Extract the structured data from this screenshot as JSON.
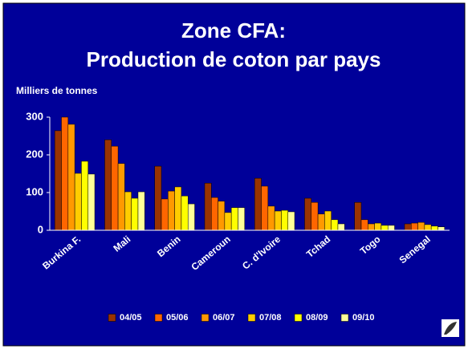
{
  "chart_data": {
    "type": "bar",
    "title": "Zone CFA:",
    "subtitle": "Production de coton par pays",
    "y_label": "Milliers de tonnes",
    "categories": [
      "Burkina F.",
      "Mali",
      "Benin",
      "Cameroun",
      "C. d'Ivoire",
      "Tchad",
      "Togo",
      "Senegal"
    ],
    "series": [
      {
        "name": "04/05",
        "color": "#993300",
        "values": [
          264,
          240,
          170,
          125,
          138,
          85,
          74,
          17
        ]
      },
      {
        "name": "05/06",
        "color": "#ff6600",
        "values": [
          300,
          223,
          83,
          87,
          117,
          74,
          28,
          19
        ]
      },
      {
        "name": "06/07",
        "color": "#ff9900",
        "values": [
          281,
          177,
          104,
          77,
          64,
          43,
          17,
          21
        ]
      },
      {
        "name": "07/08",
        "color": "#ffcc00",
        "values": [
          151,
          102,
          115,
          47,
          51,
          51,
          19,
          15
        ]
      },
      {
        "name": "08/09",
        "color": "#ffff00",
        "values": [
          183,
          85,
          91,
          60,
          53,
          28,
          13,
          11
        ]
      },
      {
        "name": "09/10",
        "color": "#ffff99",
        "values": [
          149,
          102,
          70,
          60,
          49,
          17,
          13,
          9
        ]
      }
    ],
    "ylim": [
      0,
      300
    ],
    "yticks": [
      0,
      100,
      200,
      300
    ],
    "grid": false,
    "legend": "bottom"
  }
}
